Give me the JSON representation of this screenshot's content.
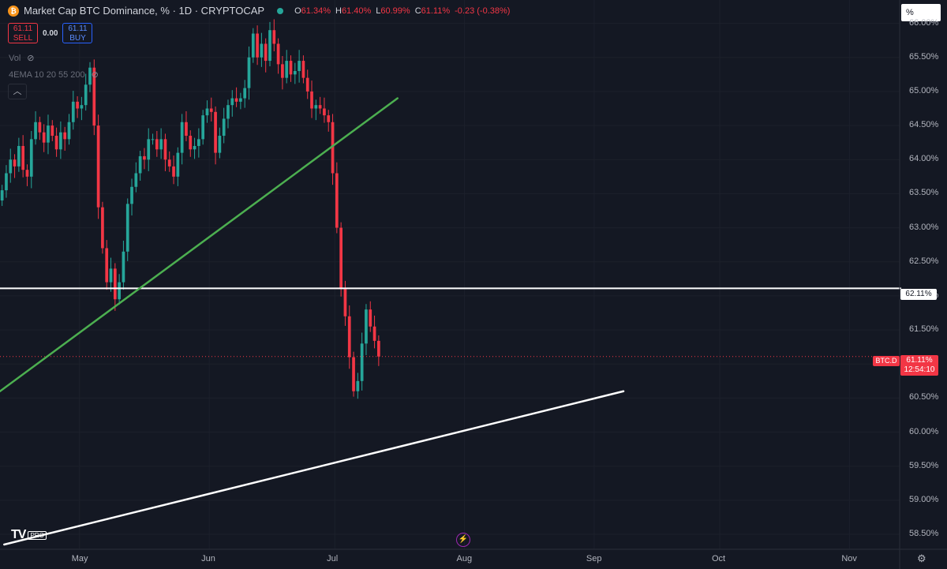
{
  "header": {
    "title": "Market Cap BTC Dominance, % · 1D · CRYPTOCAP",
    "coin_icon": "bitcoin-icon",
    "status_icon": "market-status-dot",
    "ohlc": {
      "o_key": "O",
      "o_val": "61.34%",
      "h_key": "H",
      "h_val": "61.40%",
      "l_key": "L",
      "l_val": "60.99%",
      "c_key": "C",
      "c_val": "61.11%",
      "change": "-0.23 (-0.38%)"
    }
  },
  "trade": {
    "sell_price": "61.11",
    "sell_label": "SELL",
    "spread": "0.00",
    "buy_price": "61.11",
    "buy_label": "BUY"
  },
  "indicators": {
    "vol_label": "Vol",
    "ema_label": "4EMA 10 20 55 200",
    "hidden_icon": "eye-off-icon",
    "collapse_icon": "chevron-up-icon"
  },
  "scale_mode": "%",
  "price_labels": [
    "66.00%",
    "65.50%",
    "65.00%",
    "64.50%",
    "64.00%",
    "63.50%",
    "63.00%",
    "62.50%",
    "62.00%",
    "61.50%",
    "61.00%",
    "60.50%",
    "60.00%",
    "59.50%",
    "59.00%",
    "58.50%"
  ],
  "month_labels": [
    "May",
    "Jun",
    "Jul",
    "Aug",
    "Sep",
    "Oct",
    "Nov"
  ],
  "tags": {
    "hline_value": "62.11%",
    "symbol": "BTC.D",
    "last_price": "61.11%",
    "countdown": "12:54:10"
  },
  "branding": {
    "logo": "TV",
    "pro": "PRO"
  },
  "icons": {
    "flash": "flash-icon",
    "settings": "gear-icon"
  },
  "colors": {
    "background": "#141823",
    "up": "#26a69a",
    "down": "#f23645",
    "trendline_green": "#4caf50",
    "trendline_white": "#ffffff"
  },
  "chart_data": {
    "type": "candlestick",
    "ylim": [
      58.35,
      66.25
    ],
    "x_range": [
      "2024-04-12",
      "2024-11-13"
    ],
    "x_ticks": [
      {
        "label": "May",
        "date": "2024-05-01"
      },
      {
        "label": "Jun",
        "date": "2024-06-01"
      },
      {
        "label": "Jul",
        "date": "2024-07-01"
      },
      {
        "label": "Aug",
        "date": "2024-08-01"
      },
      {
        "label": "Sep",
        "date": "2024-09-01"
      },
      {
        "label": "Oct",
        "date": "2024-10-01"
      },
      {
        "label": "Nov",
        "date": "2024-11-01"
      }
    ],
    "first_candle_date": "2024-04-12",
    "closes": [
      63.55,
      63.8,
      64.0,
      63.9,
      64.2,
      63.85,
      63.75,
      64.3,
      64.55,
      64.4,
      64.25,
      64.5,
      64.35,
      64.15,
      64.4,
      64.3,
      64.55,
      64.85,
      64.75,
      64.8,
      65.1,
      65.35,
      64.5,
      63.3,
      62.7,
      62.2,
      62.4,
      61.95,
      62.2,
      62.65,
      63.35,
      63.6,
      63.8,
      64.05,
      64.0,
      64.3,
      64.3,
      64.15,
      64.3,
      64.0,
      63.9,
      63.75,
      64.1,
      64.55,
      64.35,
      64.15,
      64.2,
      64.3,
      64.65,
      64.75,
      64.7,
      64.1,
      64.35,
      64.6,
      64.8,
      64.9,
      64.85,
      64.9,
      65.05,
      65.5,
      65.85,
      65.5,
      65.7,
      65.45,
      65.9,
      65.7,
      65.4,
      65.2,
      65.45,
      65.25,
      65.3,
      65.45,
      65.2,
      65.0,
      64.75,
      64.8,
      64.75,
      64.65,
      64.55,
      63.8,
      63.0,
      62.1,
      61.7,
      61.1,
      60.6,
      60.75,
      61.3,
      61.8,
      61.55,
      61.34,
      61.11
    ],
    "lines": [
      {
        "color": "green",
        "from": {
          "date": "2024-04-12",
          "value": 60.6
        },
        "to": {
          "date": "2024-07-16",
          "value": 64.9
        }
      },
      {
        "color": "white",
        "from": {
          "date": "2024-04-13",
          "value": 58.35
        },
        "to": {
          "date": "2024-09-08",
          "value": 60.6
        }
      }
    ],
    "hline": 62.11,
    "last_price": 61.11
  }
}
